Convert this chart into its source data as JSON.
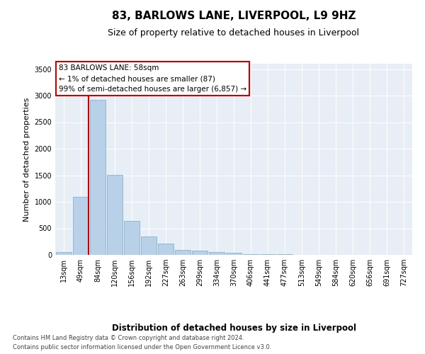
{
  "title": "83, BARLOWS LANE, LIVERPOOL, L9 9HZ",
  "subtitle": "Size of property relative to detached houses in Liverpool",
  "xlabel": "Distribution of detached houses by size in Liverpool",
  "ylabel": "Number of detached properties",
  "categories": [
    "13sqm",
    "49sqm",
    "84sqm",
    "120sqm",
    "156sqm",
    "192sqm",
    "227sqm",
    "263sqm",
    "299sqm",
    "334sqm",
    "370sqm",
    "406sqm",
    "441sqm",
    "477sqm",
    "513sqm",
    "549sqm",
    "584sqm",
    "620sqm",
    "656sqm",
    "691sqm",
    "727sqm"
  ],
  "values": [
    50,
    1100,
    2920,
    1510,
    645,
    350,
    210,
    100,
    80,
    55,
    35,
    20,
    12,
    8,
    5,
    4,
    3,
    2,
    2,
    1,
    1
  ],
  "bar_color": "#b8d0e8",
  "bar_edge_color": "#7aaac8",
  "vline_color": "#cc0000",
  "annotation_text": "83 BARLOWS LANE: 58sqm\n← 1% of detached houses are smaller (87)\n99% of semi-detached houses are larger (6,857) →",
  "annotation_box_color": "#ffffff",
  "annotation_border_color": "#cc0000",
  "ylim": [
    0,
    3600
  ],
  "yticks": [
    0,
    500,
    1000,
    1500,
    2000,
    2500,
    3000,
    3500
  ],
  "plot_bg_color": "#e8eef5",
  "footer_line1": "Contains HM Land Registry data © Crown copyright and database right 2024.",
  "footer_line2": "Contains public sector information licensed under the Open Government Licence v3.0.",
  "title_fontsize": 11,
  "subtitle_fontsize": 9,
  "xlabel_fontsize": 8.5,
  "ylabel_fontsize": 8,
  "tick_fontsize": 7,
  "annotation_fontsize": 7.5
}
